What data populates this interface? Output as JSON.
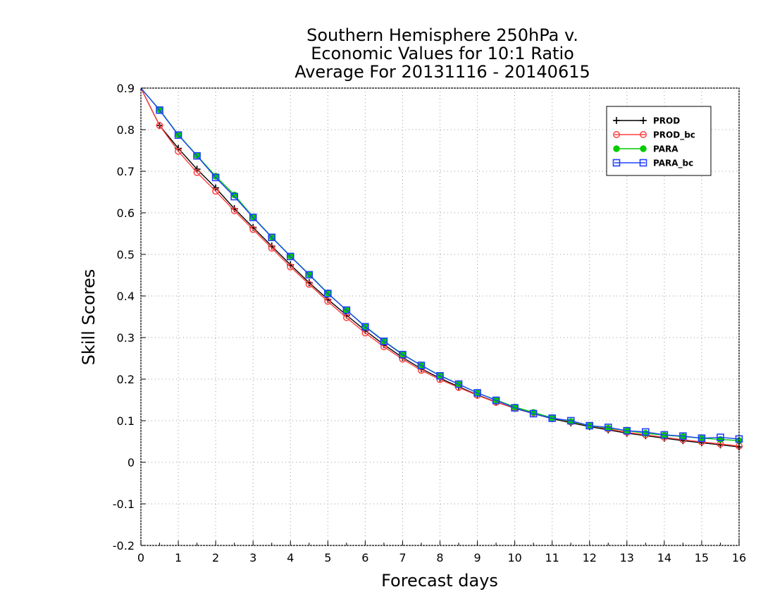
{
  "chart_data": {
    "type": "line",
    "title": [
      "Southern Hemisphere 250hPa v.",
      "Economic Values for 10:1 Ratio",
      "Average For 20131116 - 20140615"
    ],
    "xlabel": "Forecast days",
    "ylabel": "Skill Scores",
    "xlim": [
      0,
      16
    ],
    "ylim": [
      -0.2,
      0.9
    ],
    "x_ticks": [
      "0",
      "1",
      "2",
      "3",
      "4",
      "5",
      "6",
      "7",
      "8",
      "9",
      "10",
      "11",
      "12",
      "13",
      "14",
      "15",
      "16"
    ],
    "y_ticks": [
      "0.9",
      "0.8",
      "0.7",
      "0.6",
      "0.5",
      "0.4",
      "0.3",
      "0.2",
      "0.1",
      "0",
      "-0.1",
      "-0.2"
    ],
    "grid": true,
    "legend_position": "top-right",
    "x": [
      0,
      0.5,
      1,
      1.5,
      2,
      2.5,
      3,
      3.5,
      4,
      4.5,
      5,
      5.5,
      6,
      6.5,
      7,
      7.5,
      8,
      8.5,
      9,
      9.5,
      10,
      10.5,
      11,
      11.5,
      12,
      12.5,
      13,
      13.5,
      14,
      14.5,
      15,
      15.5,
      16
    ],
    "series": [
      {
        "name": "PROD",
        "color": "#000000",
        "marker": "plus",
        "values": [
          0.9,
          0.81,
          0.755,
          0.705,
          0.66,
          0.61,
          0.565,
          0.52,
          0.475,
          0.432,
          0.392,
          0.354,
          0.317,
          0.283,
          0.252,
          0.225,
          0.202,
          0.182,
          0.162,
          0.145,
          0.13,
          0.117,
          0.105,
          0.095,
          0.086,
          0.078,
          0.07,
          0.064,
          0.058,
          0.052,
          0.047,
          0.042,
          0.037
        ]
      },
      {
        "name": "PROD_bc",
        "color": "#ff4040",
        "marker": "circle",
        "values": [
          0.9,
          0.81,
          0.748,
          0.697,
          0.652,
          0.605,
          0.56,
          0.515,
          0.47,
          0.428,
          0.387,
          0.348,
          0.311,
          0.278,
          0.248,
          0.221,
          0.199,
          0.18,
          0.161,
          0.144,
          0.131,
          0.119,
          0.107,
          0.097,
          0.088,
          0.08,
          0.072,
          0.066,
          0.06,
          0.054,
          0.049,
          0.044,
          0.039
        ]
      },
      {
        "name": "PARA",
        "color": "#00cc00",
        "marker": "filled-circle",
        "values": [
          0.9,
          0.848,
          0.788,
          0.738,
          0.688,
          0.643,
          0.59,
          0.542,
          0.496,
          0.452,
          0.407,
          0.366,
          0.327,
          0.292,
          0.26,
          0.233,
          0.209,
          0.188,
          0.167,
          0.15,
          0.133,
          0.12,
          0.107,
          0.098,
          0.088,
          0.082,
          0.076,
          0.07,
          0.065,
          0.062,
          0.058,
          0.055,
          0.052
        ]
      },
      {
        "name": "PARA_bc",
        "color": "#2040ff",
        "marker": "square",
        "values": [
          0.9,
          0.847,
          0.787,
          0.737,
          0.685,
          0.639,
          0.589,
          0.541,
          0.495,
          0.451,
          0.406,
          0.366,
          0.326,
          0.291,
          0.259,
          0.233,
          0.208,
          0.188,
          0.167,
          0.149,
          0.131,
          0.117,
          0.106,
          0.1,
          0.088,
          0.084,
          0.076,
          0.073,
          0.066,
          0.063,
          0.058,
          0.06,
          0.056
        ]
      }
    ]
  }
}
